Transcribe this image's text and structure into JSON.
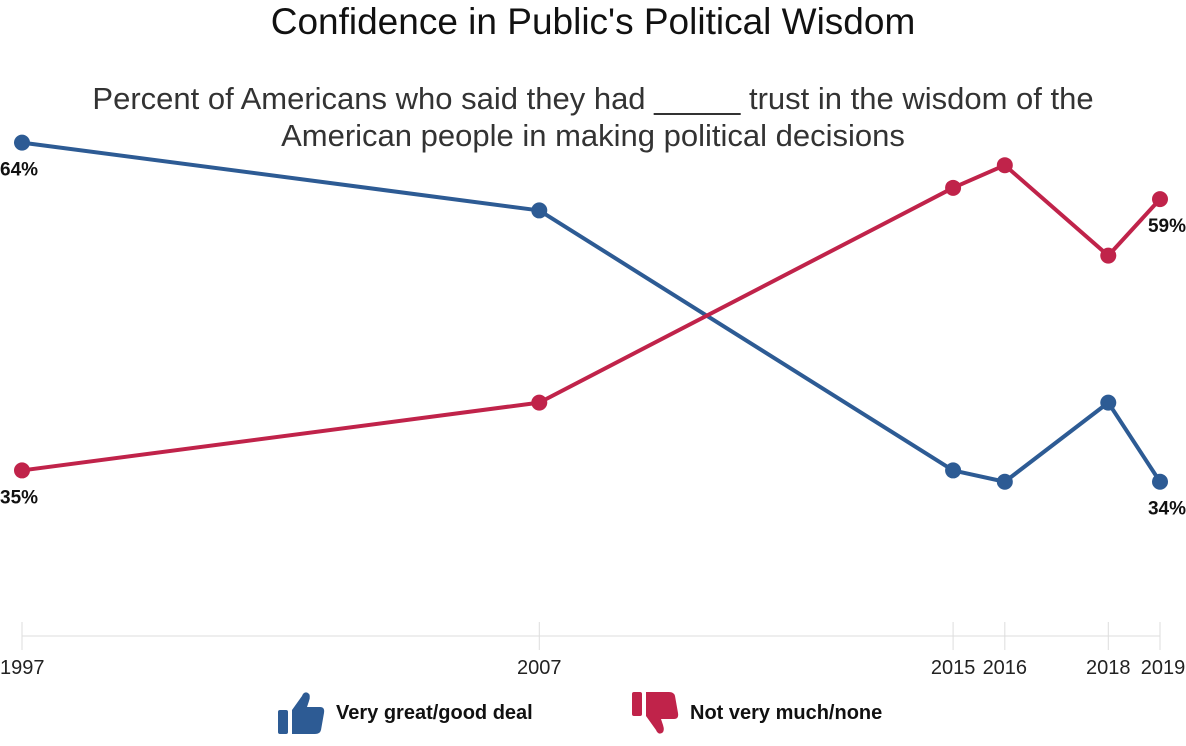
{
  "chart_data": {
    "type": "line",
    "title": "Confidence in Public's Political Wisdom",
    "subtitle_lines": [
      "Percent of Americans who said they had _____ trust  in the wisdom of the",
      "American people in making political decisions"
    ],
    "x": [
      1997,
      2007,
      2015,
      2016,
      2018,
      2019
    ],
    "x_tick_labels": [
      "1997",
      "2007",
      "2015",
      "2016",
      "2018",
      "2019"
    ],
    "ylim": [
      20,
      66
    ],
    "grid": false,
    "legend_position": "bottom",
    "series": [
      {
        "name": "Very great/good deal",
        "color": "#2d5b94",
        "icon": "thumbs-up-icon",
        "values": [
          64,
          58,
          35,
          34,
          41,
          34
        ]
      },
      {
        "name": "Not very much/none",
        "color": "#c0234a",
        "icon": "thumbs-down-icon",
        "values": [
          35,
          41,
          60,
          62,
          54,
          59
        ]
      }
    ],
    "annotations": [
      {
        "series": 0,
        "index": 0,
        "text": "64%"
      },
      {
        "series": 1,
        "index": 0,
        "text": "35%"
      },
      {
        "series": 1,
        "index": 5,
        "text": "59%"
      },
      {
        "series": 0,
        "index": 5,
        "text": "34%"
      }
    ]
  }
}
